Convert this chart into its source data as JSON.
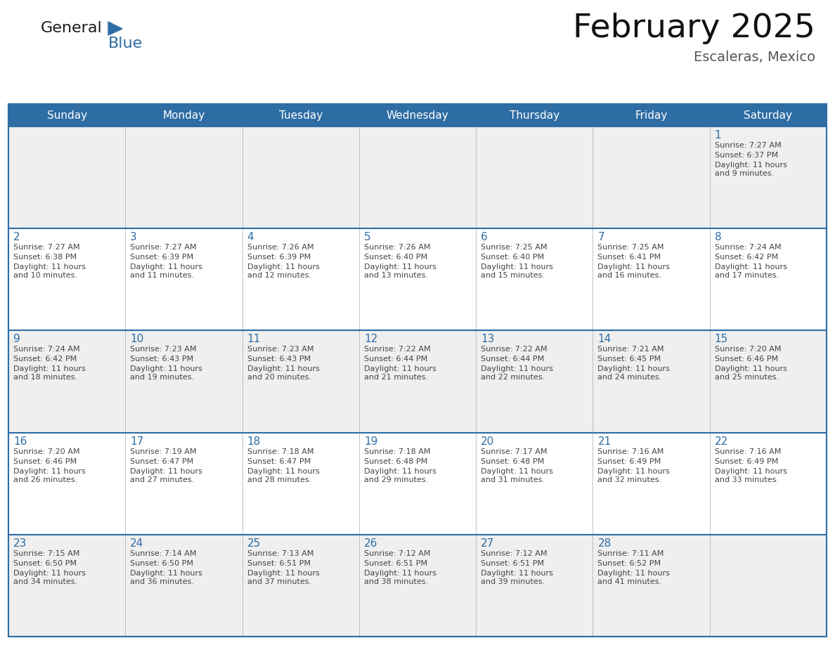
{
  "title": "February 2025",
  "subtitle": "Escaleras, Mexico",
  "days_of_week": [
    "Sunday",
    "Monday",
    "Tuesday",
    "Wednesday",
    "Thursday",
    "Friday",
    "Saturday"
  ],
  "header_bg": "#2E6DA4",
  "header_fg": "#FFFFFF",
  "row_bg_even": "#EFEFEF",
  "row_bg_odd": "#FFFFFF",
  "cell_border_color": "#AAAAAA",
  "row_border_color": "#2E6DA4",
  "day_num_color": "#2E6DA4",
  "text_color": "#444444",
  "logo_general_color": "#1a1a1a",
  "logo_blue_color": "#2E6DA4",
  "calendar": [
    [
      null,
      null,
      null,
      null,
      null,
      null,
      {
        "day": 1,
        "sunrise": "7:27 AM",
        "sunset": "6:37 PM",
        "daylight": "11 hours and 9 minutes."
      }
    ],
    [
      {
        "day": 2,
        "sunrise": "7:27 AM",
        "sunset": "6:38 PM",
        "daylight": "11 hours and 10 minutes."
      },
      {
        "day": 3,
        "sunrise": "7:27 AM",
        "sunset": "6:39 PM",
        "daylight": "11 hours and 11 minutes."
      },
      {
        "day": 4,
        "sunrise": "7:26 AM",
        "sunset": "6:39 PM",
        "daylight": "11 hours and 12 minutes."
      },
      {
        "day": 5,
        "sunrise": "7:26 AM",
        "sunset": "6:40 PM",
        "daylight": "11 hours and 13 minutes."
      },
      {
        "day": 6,
        "sunrise": "7:25 AM",
        "sunset": "6:40 PM",
        "daylight": "11 hours and 15 minutes."
      },
      {
        "day": 7,
        "sunrise": "7:25 AM",
        "sunset": "6:41 PM",
        "daylight": "11 hours and 16 minutes."
      },
      {
        "day": 8,
        "sunrise": "7:24 AM",
        "sunset": "6:42 PM",
        "daylight": "11 hours and 17 minutes."
      }
    ],
    [
      {
        "day": 9,
        "sunrise": "7:24 AM",
        "sunset": "6:42 PM",
        "daylight": "11 hours and 18 minutes."
      },
      {
        "day": 10,
        "sunrise": "7:23 AM",
        "sunset": "6:43 PM",
        "daylight": "11 hours and 19 minutes."
      },
      {
        "day": 11,
        "sunrise": "7:23 AM",
        "sunset": "6:43 PM",
        "daylight": "11 hours and 20 minutes."
      },
      {
        "day": 12,
        "sunrise": "7:22 AM",
        "sunset": "6:44 PM",
        "daylight": "11 hours and 21 minutes."
      },
      {
        "day": 13,
        "sunrise": "7:22 AM",
        "sunset": "6:44 PM",
        "daylight": "11 hours and 22 minutes."
      },
      {
        "day": 14,
        "sunrise": "7:21 AM",
        "sunset": "6:45 PM",
        "daylight": "11 hours and 24 minutes."
      },
      {
        "day": 15,
        "sunrise": "7:20 AM",
        "sunset": "6:46 PM",
        "daylight": "11 hours and 25 minutes."
      }
    ],
    [
      {
        "day": 16,
        "sunrise": "7:20 AM",
        "sunset": "6:46 PM",
        "daylight": "11 hours and 26 minutes."
      },
      {
        "day": 17,
        "sunrise": "7:19 AM",
        "sunset": "6:47 PM",
        "daylight": "11 hours and 27 minutes."
      },
      {
        "day": 18,
        "sunrise": "7:18 AM",
        "sunset": "6:47 PM",
        "daylight": "11 hours and 28 minutes."
      },
      {
        "day": 19,
        "sunrise": "7:18 AM",
        "sunset": "6:48 PM",
        "daylight": "11 hours and 29 minutes."
      },
      {
        "day": 20,
        "sunrise": "7:17 AM",
        "sunset": "6:48 PM",
        "daylight": "11 hours and 31 minutes."
      },
      {
        "day": 21,
        "sunrise": "7:16 AM",
        "sunset": "6:49 PM",
        "daylight": "11 hours and 32 minutes."
      },
      {
        "day": 22,
        "sunrise": "7:16 AM",
        "sunset": "6:49 PM",
        "daylight": "11 hours and 33 minutes."
      }
    ],
    [
      {
        "day": 23,
        "sunrise": "7:15 AM",
        "sunset": "6:50 PM",
        "daylight": "11 hours and 34 minutes."
      },
      {
        "day": 24,
        "sunrise": "7:14 AM",
        "sunset": "6:50 PM",
        "daylight": "11 hours and 36 minutes."
      },
      {
        "day": 25,
        "sunrise": "7:13 AM",
        "sunset": "6:51 PM",
        "daylight": "11 hours and 37 minutes."
      },
      {
        "day": 26,
        "sunrise": "7:12 AM",
        "sunset": "6:51 PM",
        "daylight": "11 hours and 38 minutes."
      },
      {
        "day": 27,
        "sunrise": "7:12 AM",
        "sunset": "6:51 PM",
        "daylight": "11 hours and 39 minutes."
      },
      {
        "day": 28,
        "sunrise": "7:11 AM",
        "sunset": "6:52 PM",
        "daylight": "11 hours and 41 minutes."
      },
      null
    ]
  ],
  "figsize": [
    11.88,
    9.18
  ],
  "dpi": 100
}
